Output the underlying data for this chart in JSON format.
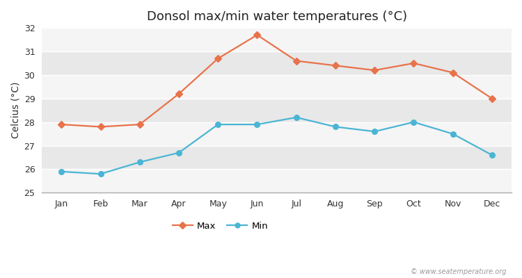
{
  "title": "Donsol max/min water temperatures (°C)",
  "ylabel": "Celcius (°C)",
  "months": [
    "Jan",
    "Feb",
    "Mar",
    "Apr",
    "May",
    "Jun",
    "Jul",
    "Aug",
    "Sep",
    "Oct",
    "Nov",
    "Dec"
  ],
  "max_temps": [
    27.9,
    27.8,
    27.9,
    29.2,
    30.7,
    31.7,
    30.6,
    30.4,
    30.2,
    30.5,
    30.1,
    29.0
  ],
  "min_temps": [
    25.9,
    25.8,
    26.3,
    26.7,
    27.9,
    27.9,
    28.2,
    27.8,
    27.6,
    28.0,
    27.5,
    26.6
  ],
  "max_color": "#e8724a",
  "min_color": "#4ab5d4",
  "ylim": [
    25,
    32
  ],
  "yticks": [
    25,
    26,
    27,
    28,
    29,
    30,
    31,
    32
  ],
  "band_color_dark": "#e8e8e8",
  "band_color_light": "#f5f5f5",
  "figure_bg": "#ffffff",
  "grid_line_color": "#ffffff",
  "title_fontsize": 13,
  "axis_label_fontsize": 10,
  "tick_fontsize": 9,
  "watermark": "© www.seatemperature.org"
}
